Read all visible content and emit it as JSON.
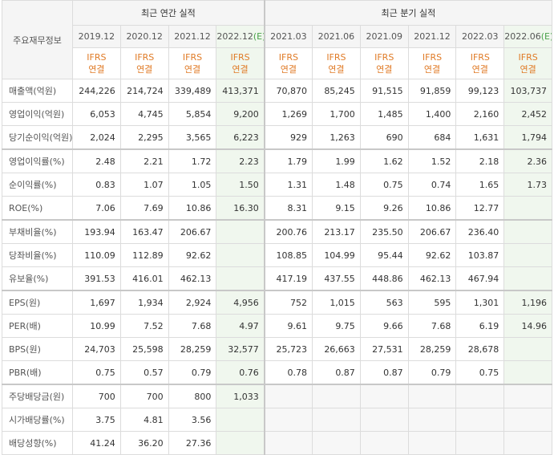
{
  "header": {
    "row_label": "주요재무정보",
    "annual_group": "최근 연간 실적",
    "quarter_group": "최근 분기 실적",
    "ifrs_line1": "IFRS",
    "ifrs_line2": "연결",
    "estimate_mark": "(E)",
    "annual_periods": [
      "2019.12",
      "2020.12",
      "2021.12",
      "2022.12"
    ],
    "quarter_periods": [
      "2021.03",
      "2021.06",
      "2021.09",
      "2021.12",
      "2022.03",
      "2022.06"
    ]
  },
  "rows": [
    {
      "label": "매출액(억원)",
      "values": [
        "244,226",
        "214,724",
        "339,489",
        "413,371",
        "70,870",
        "85,245",
        "91,515",
        "91,859",
        "99,123",
        "103,737"
      ]
    },
    {
      "label": "영업이익(억원)",
      "values": [
        "6,053",
        "4,745",
        "5,854",
        "9,200",
        "1,269",
        "1,700",
        "1,485",
        "1,400",
        "2,160",
        "2,452"
      ]
    },
    {
      "label": "당기순이익(억원)",
      "values": [
        "2,024",
        "2,295",
        "3,565",
        "6,223",
        "929",
        "1,263",
        "690",
        "684",
        "1,631",
        "1,794"
      ]
    },
    {
      "label": "영업이익률(%)",
      "values": [
        "2.48",
        "2.21",
        "1.72",
        "2.23",
        "1.79",
        "1.99",
        "1.62",
        "1.52",
        "2.18",
        "2.36"
      ]
    },
    {
      "label": "순이익률(%)",
      "values": [
        "0.83",
        "1.07",
        "1.05",
        "1.50",
        "1.31",
        "1.48",
        "0.75",
        "0.74",
        "1.65",
        "1.73"
      ]
    },
    {
      "label": "ROE(%)",
      "values": [
        "7.06",
        "7.69",
        "10.86",
        "16.30",
        "8.31",
        "9.15",
        "9.26",
        "10.86",
        "12.77",
        ""
      ]
    },
    {
      "label": "부채비율(%)",
      "values": [
        "193.94",
        "163.47",
        "206.67",
        "",
        "200.76",
        "213.17",
        "235.50",
        "206.67",
        "236.40",
        ""
      ]
    },
    {
      "label": "당좌비율(%)",
      "values": [
        "110.09",
        "112.89",
        "92.62",
        "",
        "108.85",
        "104.99",
        "95.44",
        "92.62",
        "103.87",
        ""
      ]
    },
    {
      "label": "유보율(%)",
      "values": [
        "391.53",
        "416.01",
        "462.13",
        "",
        "417.19",
        "437.55",
        "448.86",
        "462.13",
        "467.94",
        ""
      ]
    },
    {
      "label": "EPS(원)",
      "values": [
        "1,697",
        "1,934",
        "2,924",
        "4,956",
        "752",
        "1,015",
        "563",
        "595",
        "1,301",
        "1,196"
      ]
    },
    {
      "label": "PER(배)",
      "values": [
        "10.99",
        "7.52",
        "7.68",
        "4.97",
        "9.61",
        "9.75",
        "9.66",
        "7.68",
        "6.19",
        "14.96"
      ]
    },
    {
      "label": "BPS(원)",
      "values": [
        "24,703",
        "25,598",
        "28,259",
        "32,577",
        "25,723",
        "26,663",
        "27,531",
        "28,259",
        "28,678",
        ""
      ]
    },
    {
      "label": "PBR(배)",
      "values": [
        "0.75",
        "0.57",
        "0.79",
        "0.76",
        "0.78",
        "0.87",
        "0.87",
        "0.79",
        "0.75",
        ""
      ]
    },
    {
      "label": "주당배당금(원)",
      "values": [
        "700",
        "700",
        "800",
        "1,033",
        "",
        "",
        "",
        "",
        "",
        ""
      ]
    },
    {
      "label": "시가배당률(%)",
      "values": [
        "3.75",
        "4.81",
        "3.56",
        "",
        "",
        "",
        "",
        "",
        "",
        ""
      ]
    },
    {
      "label": "배당성향(%)",
      "values": [
        "41.24",
        "36.20",
        "27.36",
        "",
        "",
        "",
        "",
        "",
        "",
        ""
      ]
    }
  ]
}
